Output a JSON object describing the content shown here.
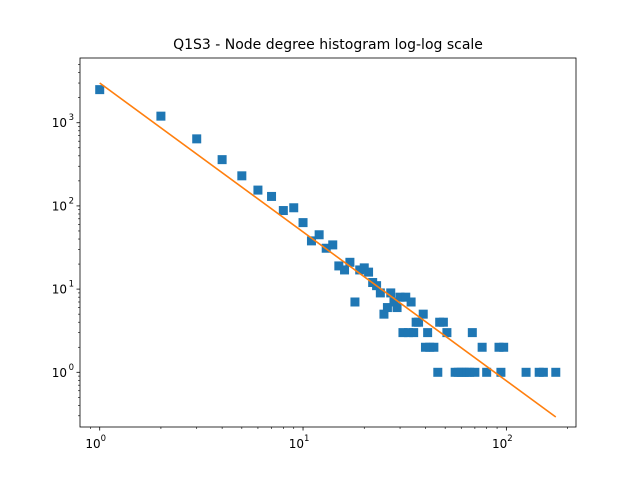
{
  "chart_data": {
    "type": "scatter",
    "title": "Q1S3 - Node degree histogram log-log scale",
    "xlabel": "",
    "ylabel": "",
    "xscale": "log",
    "yscale": "log",
    "xlim": [
      0.8,
      220
    ],
    "ylim": [
      0.22,
      6000
    ],
    "x_ticks": [
      {
        "value": 1,
        "base": "10",
        "exp": "0"
      },
      {
        "value": 10,
        "base": "10",
        "exp": "1"
      },
      {
        "value": 100,
        "base": "10",
        "exp": "2"
      }
    ],
    "y_ticks": [
      {
        "value": 1,
        "base": "10",
        "exp": "0"
      },
      {
        "value": 10,
        "base": "10",
        "exp": "1"
      },
      {
        "value": 100,
        "base": "10",
        "exp": "2"
      },
      {
        "value": 1000,
        "base": "10",
        "exp": "3"
      }
    ],
    "grid": false,
    "legend": "none",
    "series": [
      {
        "kind": "markers",
        "marker": "square",
        "color": "#1f77b4",
        "points": [
          [
            1,
            2500
          ],
          [
            2,
            1200
          ],
          [
            3,
            640
          ],
          [
            4,
            360
          ],
          [
            5,
            230
          ],
          [
            6,
            155
          ],
          [
            7,
            130
          ],
          [
            8,
            88
          ],
          [
            9,
            95
          ],
          [
            10,
            63
          ],
          [
            11,
            38
          ],
          [
            12,
            45
          ],
          [
            13,
            31
          ],
          [
            14,
            34
          ],
          [
            15,
            19
          ],
          [
            16,
            17
          ],
          [
            17,
            21
          ],
          [
            18,
            7
          ],
          [
            19,
            17
          ],
          [
            20,
            18
          ],
          [
            21,
            16
          ],
          [
            22,
            12
          ],
          [
            23,
            11
          ],
          [
            24,
            9
          ],
          [
            25,
            5
          ],
          [
            26,
            6
          ],
          [
            27,
            9
          ],
          [
            28,
            7
          ],
          [
            29,
            6
          ],
          [
            30,
            8
          ],
          [
            31,
            3
          ],
          [
            32,
            8
          ],
          [
            33,
            3
          ],
          [
            34,
            7
          ],
          [
            35,
            3
          ],
          [
            36,
            4
          ],
          [
            37,
            4
          ],
          [
            39,
            5
          ],
          [
            40,
            2
          ],
          [
            41,
            3
          ],
          [
            42,
            2
          ],
          [
            44,
            2
          ],
          [
            46,
            1
          ],
          [
            47,
            4
          ],
          [
            49,
            4
          ],
          [
            51,
            3
          ],
          [
            56,
            1
          ],
          [
            58,
            1
          ],
          [
            60,
            1
          ],
          [
            62,
            1
          ],
          [
            64,
            1
          ],
          [
            66,
            1
          ],
          [
            68,
            3
          ],
          [
            70,
            1
          ],
          [
            76,
            2
          ],
          [
            80,
            1
          ],
          [
            92,
            2
          ],
          [
            94,
            1
          ],
          [
            97,
            2
          ],
          [
            125,
            1
          ],
          [
            145,
            1
          ],
          [
            152,
            1
          ],
          [
            175,
            1
          ]
        ]
      },
      {
        "kind": "line",
        "color": "#ff7f0e",
        "points": [
          [
            1,
            3000
          ],
          [
            175,
            0.29
          ]
        ]
      }
    ]
  }
}
